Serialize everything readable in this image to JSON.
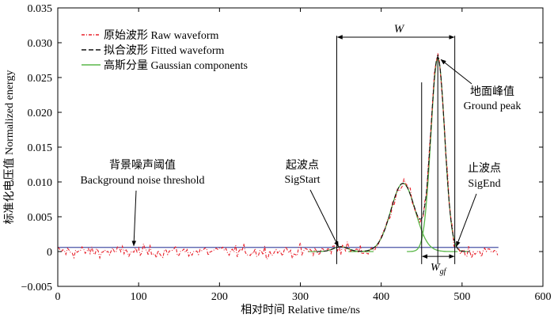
{
  "chart_data": {
    "type": "line",
    "xlabel": "相对时间 Relative time/ns",
    "ylabel": "标准化电压值 Normalized energy",
    "xlim": [
      0,
      600
    ],
    "ylim": [
      -0.005,
      0.035
    ],
    "x_ticks": [
      0,
      100,
      200,
      300,
      400,
      500,
      600
    ],
    "x_tick_labels": [
      "0",
      "100",
      "200",
      "300",
      "400",
      "500",
      "600"
    ],
    "y_ticks": [
      -0.005,
      0,
      0.005,
      0.01,
      0.015,
      0.02,
      0.025,
      0.03,
      0.035
    ],
    "y_tick_labels": [
      "−0.005",
      "0",
      "0.005",
      "0.010",
      "0.015",
      "0.020",
      "0.025",
      "0.030",
      "0.035"
    ],
    "grid": false,
    "legend_position": "top-left",
    "legend": [
      {
        "label": "原始波形 Raw waveform",
        "style": "dash-dot",
        "color": "#e8202a"
      },
      {
        "label": "拟合波形 Fitted waveform",
        "style": "dashed",
        "color": "#111111"
      },
      {
        "label": "高斯分量 Gaussian components",
        "style": "solid",
        "color": "#5ab748"
      }
    ],
    "noise_threshold": 0.0006,
    "raw_waveform": {
      "x_start": 0,
      "x_end": 545,
      "step": 2,
      "noise_sd": 0.00045,
      "seed": 12345
    },
    "gaussian_components": [
      {
        "mu": 350,
        "amplitude": 0.0007,
        "sigma": 9
      },
      {
        "mu": 427,
        "amplitude": 0.0098,
        "sigma": 15
      },
      {
        "mu": 470,
        "amplitude": 0.0278,
        "sigma": 8.5
      }
    ],
    "fitted_x_range": [
      320,
      510
    ],
    "vertical_lines": [
      {
        "x": 345,
        "y_top": 0.031
      },
      {
        "x": 450,
        "y_top": 0.0243
      },
      {
        "x": 470,
        "y_top": 0.0283
      },
      {
        "x": 491,
        "y_top": 0.031
      }
    ],
    "annotations": {
      "w_label": "W",
      "w_span": [
        345,
        491
      ],
      "w_y": 0.0308,
      "wgf_label": "W",
      "wgf_sub": "gf",
      "wgf_span": [
        450,
        491
      ],
      "wgf_y": -0.0007,
      "ground_peak_cn": "地面峰值",
      "ground_peak_en": "Ground peak",
      "ground_peak_arrow_to": [
        470,
        0.0278
      ],
      "sigstart_cn": "起波点",
      "sigstart_en": "SigStart",
      "sigstart_arrow_to": [
        345,
        0.0004
      ],
      "sigend_cn": "止波点",
      "sigend_en": "SigEnd",
      "sigend_arrow_to": [
        491,
        0.0004
      ],
      "bg_cn": "背景噪声阈值",
      "bg_en": "Background noise threshold",
      "bg_arrow_to": [
        93,
        0.0006
      ]
    }
  }
}
